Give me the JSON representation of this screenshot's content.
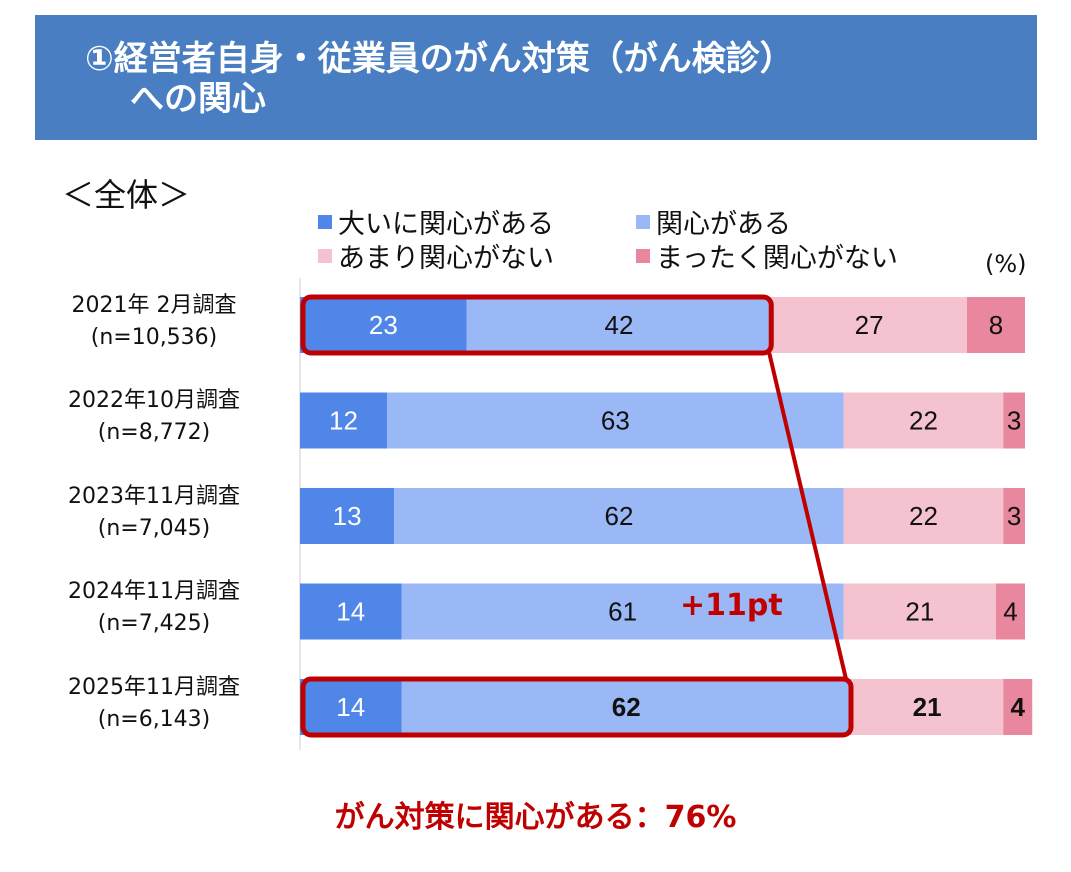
{
  "header": {
    "title_line1": "①経営者自身・従業員のがん対策（がん検診）",
    "title_line2": "への関心"
  },
  "subtitle": "＜全体＞",
  "chart_data": {
    "type": "bar",
    "orientation": "horizontal-stacked-100",
    "unit_label": "(%)",
    "categories": [
      {
        "label": "2021年 2月調査",
        "n": "(n=10,536)"
      },
      {
        "label": "2022年10月調査",
        "n": "(n=8,772)"
      },
      {
        "label": "2023年11月調査",
        "n": "(n=7,045)"
      },
      {
        "label": "2024年11月調査",
        "n": "(n=7,425)"
      },
      {
        "label": "2025年11月調査",
        "n": "(n=6,143)"
      }
    ],
    "series": [
      {
        "name": "大いに関心がある",
        "color": "#4f86e8",
        "values": [
          23,
          12,
          13,
          14,
          14
        ]
      },
      {
        "name": "関心がある",
        "color": "#9ab8f5",
        "values": [
          42,
          63,
          62,
          61,
          62
        ]
      },
      {
        "name": "あまり関心がない",
        "color": "#f4c3cf",
        "values": [
          27,
          22,
          22,
          21,
          21
        ]
      },
      {
        "name": "まったく関心がない",
        "color": "#e8879d",
        "values": [
          8,
          3,
          3,
          4,
          4
        ]
      }
    ],
    "xlim": [
      0,
      100
    ],
    "annotations": {
      "diff": "+11pt",
      "highlight_color": "#c00000"
    }
  },
  "footer_note": "がん対策に関心がある：76%"
}
